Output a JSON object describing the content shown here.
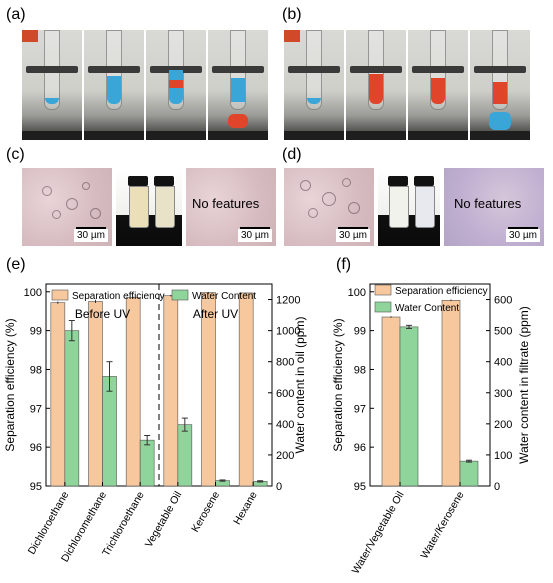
{
  "panels": {
    "a": "(a)",
    "b": "(b)",
    "c": "(c)",
    "d": "(d)",
    "e": "(e)",
    "f": "(f)"
  },
  "photos": {
    "scale_label": "30 µm",
    "no_features": "No features"
  },
  "colors": {
    "separation": "#f7c79e",
    "water": "#8fd49a",
    "tube_blue": "#3aa6d8",
    "tube_red": "#e0452c"
  },
  "chart_data": [
    {
      "type": "bar",
      "legend": [
        "Separation efficiency",
        "Water Content"
      ],
      "group_labels": [
        "Before UV",
        "After UV"
      ],
      "categories": [
        "Dichloroethane",
        "Dichloromethane",
        "Trichloroethane",
        "Vegetable Oil",
        "Kerosene",
        "Hexane"
      ],
      "series": [
        {
          "name": "Separation efficiency",
          "values": [
            99.72,
            99.75,
            99.85,
            99.9,
            99.98,
            99.97
          ],
          "errors": [
            0.03,
            0.04,
            0.02,
            0.02,
            0.01,
            0.01
          ],
          "axis": "left"
        },
        {
          "name": "Water Content",
          "values": [
            1000,
            705,
            295,
            395,
            35,
            30
          ],
          "errors": [
            65,
            95,
            30,
            42,
            4,
            4
          ],
          "axis": "right"
        }
      ],
      "ylabel": "Separation efficiency  (%)",
      "ylim": [
        95,
        100.2
      ],
      "yticks": [
        "95",
        "96",
        "97",
        "98",
        "99",
        "100"
      ],
      "y2label": "Water content in oil  (ppm)",
      "y2lim": [
        0,
        1300
      ],
      "y2ticks": [
        "0",
        "200",
        "400",
        "600",
        "800",
        "1000",
        "1200"
      ]
    },
    {
      "type": "bar",
      "legend": [
        "Separation efficiency",
        "Water Content"
      ],
      "categories": [
        "Water/Vegetable Oil",
        "Water/Kerosene"
      ],
      "series": [
        {
          "name": "Separation efficiency",
          "values": [
            99.35,
            99.78
          ],
          "errors": [
            0.02,
            0.02
          ],
          "axis": "left"
        },
        {
          "name": "Water Content",
          "values": [
            512,
            80
          ],
          "errors": [
            5,
            3
          ],
          "axis": "right"
        }
      ],
      "ylabel": "Separation efficiency  (%)",
      "ylim": [
        95,
        100.2
      ],
      "yticks": [
        "95",
        "96",
        "97",
        "98",
        "99",
        "100"
      ],
      "y2label": "Water content in filtrate  (ppm)",
      "y2lim": [
        0,
        650
      ],
      "y2ticks": [
        "0",
        "100",
        "200",
        "300",
        "400",
        "500",
        "600"
      ]
    }
  ]
}
